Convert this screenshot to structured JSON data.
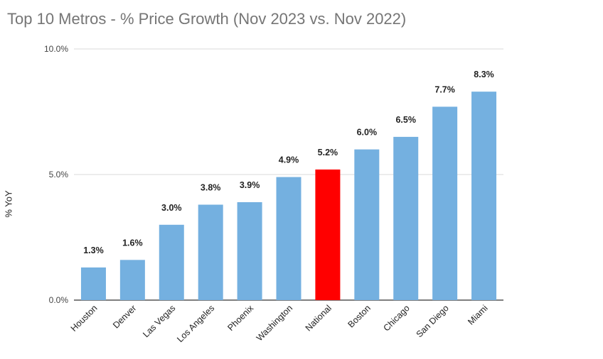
{
  "chart_data": {
    "type": "bar",
    "title": "Top 10 Metros - % Price Growth (Nov 2023 vs. Nov 2022)",
    "xlabel": "",
    "ylabel": "% YoY",
    "ylim": [
      0,
      10
    ],
    "yticks": [
      {
        "value": 0,
        "label": "0.0%"
      },
      {
        "value": 5,
        "label": "5.0%"
      },
      {
        "value": 10,
        "label": "10.0%"
      }
    ],
    "grid": true,
    "categories": [
      "Houston",
      "Denver",
      "Las Vegas",
      "Los Angeles",
      "Phoenix",
      "Washington",
      "National",
      "Boston",
      "Chicago",
      "San Diego",
      "Miami"
    ],
    "values": [
      1.3,
      1.6,
      3.0,
      3.8,
      3.9,
      4.9,
      5.2,
      6.0,
      6.5,
      7.7,
      8.3
    ],
    "data_labels": [
      "1.3%",
      "1.6%",
      "3.0%",
      "3.8%",
      "3.9%",
      "4.9%",
      "5.2%",
      "6.0%",
      "6.5%",
      "7.7%",
      "8.3%"
    ],
    "colors": {
      "default": "#74b0e0",
      "highlight": "#ff0000",
      "highlight_category": "National",
      "grid": "#d9d9d9",
      "axis": "#333333"
    }
  }
}
